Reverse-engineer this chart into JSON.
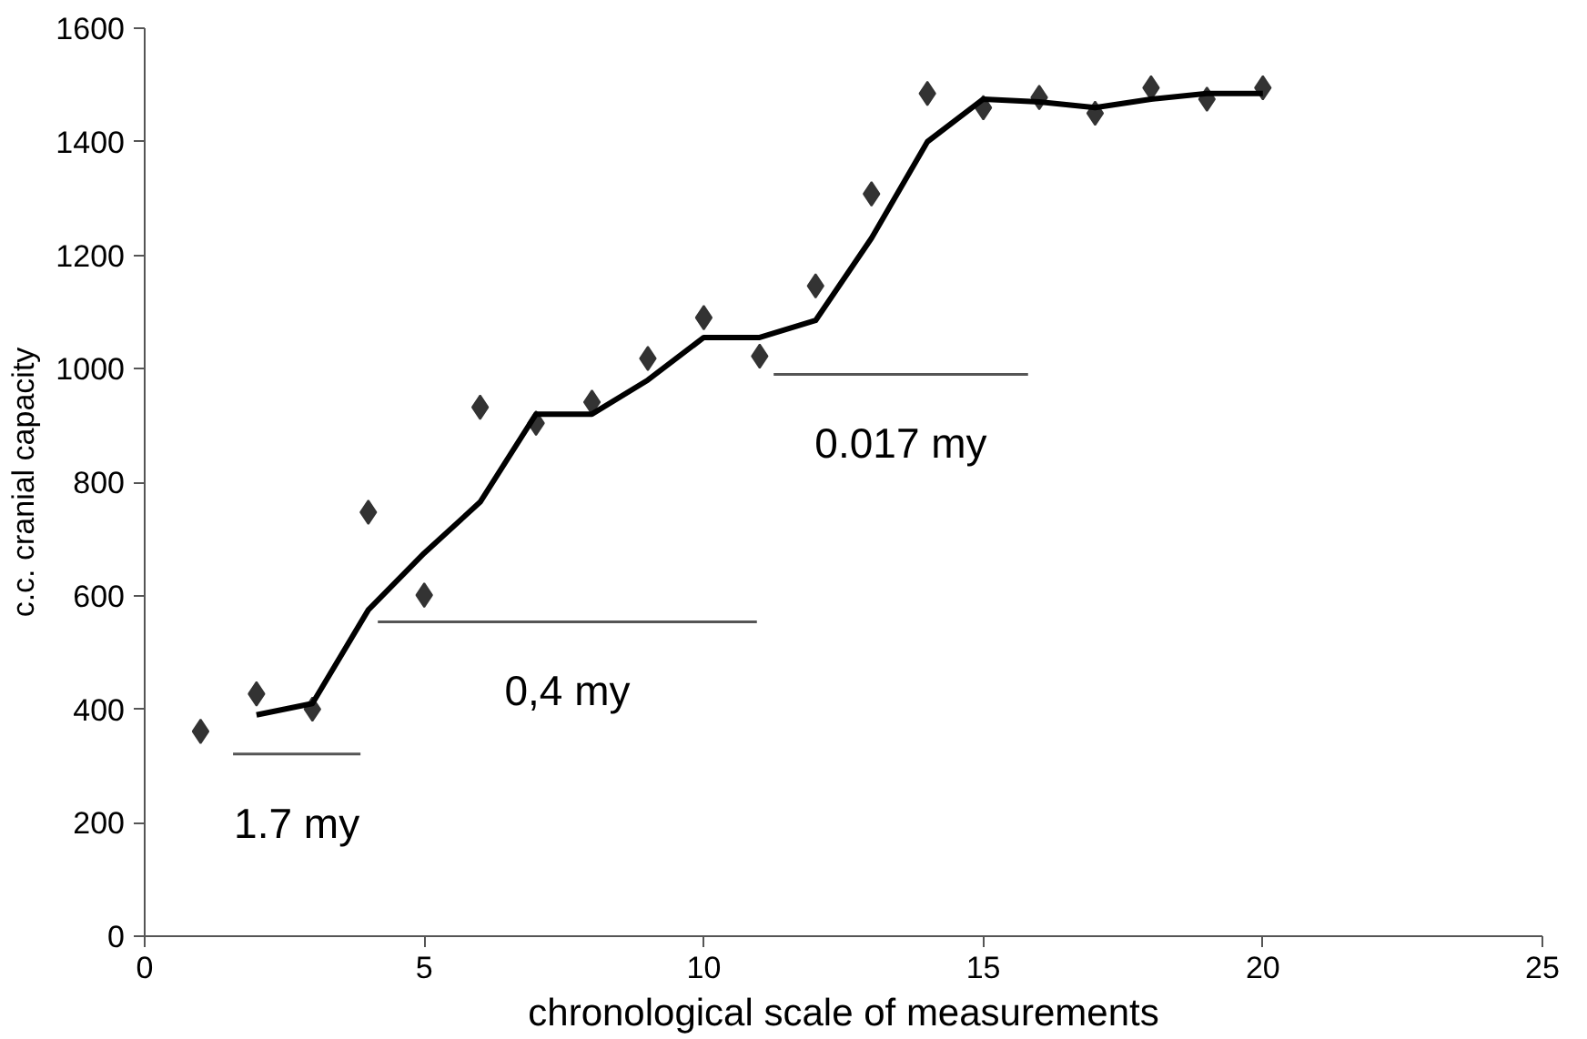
{
  "chart_data": {
    "type": "scatter",
    "xlabel": "chronological scale of measurements",
    "ylabel": "c.c. cranial capacity",
    "xlim": [
      0,
      25
    ],
    "xticks": [
      0,
      5,
      10,
      15,
      20,
      25
    ],
    "ylim": [
      0,
      1600
    ],
    "yticks": [
      0,
      200,
      400,
      600,
      800,
      1000,
      1200,
      1400,
      1600
    ],
    "grid": false,
    "series": [
      {
        "marker": "diamond",
        "color": "#333333",
        "x": [
          1,
          2,
          3,
          4,
          5,
          6,
          7,
          8,
          9,
          10,
          11,
          12,
          13,
          14,
          15,
          16,
          17,
          18,
          19,
          20
        ],
        "values": [
          361,
          427,
          400,
          747,
          601,
          932,
          904,
          941,
          1018,
          1090,
          1022,
          1146,
          1308,
          1485,
          1460,
          1478,
          1450,
          1495,
          1475,
          1495
        ]
      },
      {
        "type": "line",
        "marker": "none",
        "color": "#000000",
        "x": [
          2,
          3,
          4,
          5,
          6,
          7,
          8,
          9,
          10,
          11,
          12,
          13,
          14,
          15,
          16,
          17,
          18,
          19,
          20
        ],
        "values": [
          390,
          410,
          575,
          675,
          765,
          920,
          920,
          980,
          1055,
          1055,
          1085,
          1230,
          1400,
          1475,
          1470,
          1460,
          1475,
          1485,
          1485
        ]
      },
      {
        "type": "line",
        "marker": "none",
        "color": "#555555",
        "x": [
          1.58,
          3.86
        ],
        "values": [
          321,
          321
        ]
      },
      {
        "type": "line",
        "marker": "none",
        "color": "#555555",
        "x": [
          4.17,
          10.95
        ],
        "values": [
          554,
          554
        ]
      },
      {
        "type": "line",
        "marker": "none",
        "color": "#555555",
        "x": [
          11.25,
          15.8
        ],
        "values": [
          990,
          990
        ]
      }
    ],
    "annotations": [
      {
        "text": "1.7 my",
        "x": 2.72,
        "y": 321
      },
      {
        "text": "0,4 my",
        "x": 7.56,
        "y": 554
      },
      {
        "text": "0.017 my",
        "x": 13.525,
        "y": 990
      }
    ]
  }
}
